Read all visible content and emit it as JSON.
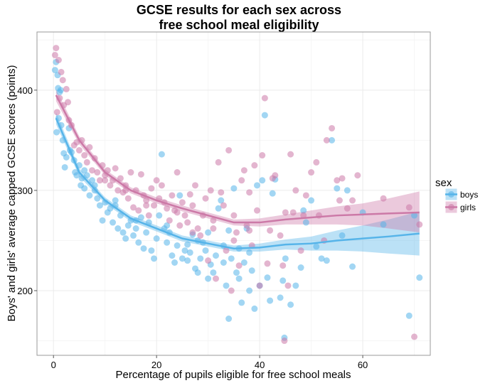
{
  "chart_data": {
    "type": "scatter",
    "title": "GCSE results for each sex across\nfree school meal eligibility",
    "xlabel": "Percentage of pupils eligible for free school meals",
    "ylabel": "Boys' and girls' average capped GCSE scores (points)",
    "xlim": [
      -3.2,
      73.1
    ],
    "ylim": [
      135.5,
      458
    ],
    "xticks": [
      0,
      20,
      40,
      60
    ],
    "yticks": [
      200,
      300,
      400
    ],
    "grid": true,
    "legend": {
      "title": "sex",
      "placement": "right",
      "entries": [
        "boys",
        "girls"
      ]
    },
    "series": [
      {
        "name": "boys",
        "color": "#56B4E9",
        "points": [
          [
            0.3,
            420
          ],
          [
            0.5,
            428
          ],
          [
            0.8,
            415
          ],
          [
            0.9,
            402
          ],
          [
            1.2,
            398
          ],
          [
            1.4,
            400
          ],
          [
            0.6,
            358
          ],
          [
            1,
            372
          ],
          [
            1.5,
            365
          ],
          [
            1.8,
            350
          ],
          [
            2,
            337
          ],
          [
            2.2,
            323
          ],
          [
            2.5,
            333
          ],
          [
            3,
            362
          ],
          [
            3.2,
            340
          ],
          [
            3.5,
            338
          ],
          [
            4,
            330
          ],
          [
            4.2,
            318
          ],
          [
            4.5,
            315
          ],
          [
            5,
            325
          ],
          [
            5.3,
            305
          ],
          [
            5.5,
            312
          ],
          [
            6,
            302
          ],
          [
            6.5,
            315
          ],
          [
            7,
            295
          ],
          [
            7.5,
            310
          ],
          [
            8,
            300
          ],
          [
            8.5,
            292
          ],
          [
            9,
            285
          ],
          [
            9.5,
            270
          ],
          [
            10,
            288
          ],
          [
            10.5,
            278
          ],
          [
            11,
            282
          ],
          [
            11.5,
            268
          ],
          [
            12,
            285
          ],
          [
            12.5,
            262
          ],
          [
            13,
            275
          ],
          [
            13.5,
            258
          ],
          [
            14,
            252
          ],
          [
            14.5,
            265
          ],
          [
            15,
            270
          ],
          [
            15.5,
            255
          ],
          [
            16,
            262
          ],
          [
            16.5,
            248
          ],
          [
            17,
            273
          ],
          [
            17.5,
            242
          ],
          [
            18,
            258
          ],
          [
            18.5,
            268
          ],
          [
            19,
            240
          ],
          [
            19.5,
            232
          ],
          [
            20,
            252
          ],
          [
            20.5,
            275
          ],
          [
            21,
            336
          ],
          [
            21.5,
            262
          ],
          [
            22,
            248
          ],
          [
            22.5,
            258
          ],
          [
            23,
            235
          ],
          [
            23.5,
            228
          ],
          [
            24,
            245
          ],
          [
            24.5,
            295
          ],
          [
            25,
            232
          ],
          [
            25.5,
            240
          ],
          [
            26,
            230
          ],
          [
            26.5,
            238
          ],
          [
            27,
            256
          ],
          [
            27.5,
            222
          ],
          [
            28,
            218
          ],
          [
            28.5,
            232
          ],
          [
            29,
            248
          ],
          [
            29.5,
            240
          ],
          [
            30,
            212
          ],
          [
            30.5,
            226
          ],
          [
            31,
            218
          ],
          [
            31.5,
            235
          ],
          [
            32,
            282
          ],
          [
            32.5,
            290
          ],
          [
            33,
            228
          ],
          [
            33.5,
            205
          ],
          [
            34,
            172
          ],
          [
            34.5,
            232
          ],
          [
            35,
            302
          ],
          [
            35.5,
            218
          ],
          [
            36,
            212
          ],
          [
            36.5,
            188
          ],
          [
            37,
            228
          ],
          [
            37.5,
            262
          ],
          [
            38,
            200
          ],
          [
            38.5,
            220
          ],
          [
            39,
            182
          ],
          [
            39.5,
            305
          ],
          [
            40,
            205
          ],
          [
            40.5,
            310
          ],
          [
            41,
            375
          ],
          [
            41.5,
            213
          ],
          [
            42,
            190
          ],
          [
            42.5,
            297
          ],
          [
            43,
            311
          ],
          [
            44,
            193
          ],
          [
            44.5,
            210
          ],
          [
            44.8,
            153
          ],
          [
            45,
            232
          ],
          [
            46,
            186
          ],
          [
            47,
            205
          ],
          [
            48,
            223
          ],
          [
            48.5,
            280
          ],
          [
            49,
            268
          ],
          [
            50,
            290
          ],
          [
            51,
            244
          ],
          [
            52,
            232
          ],
          [
            53,
            230
          ],
          [
            54,
            350
          ],
          [
            55,
            302
          ],
          [
            56,
            255
          ],
          [
            57,
            300
          ],
          [
            58,
            224
          ],
          [
            60,
            278
          ],
          [
            64,
            266
          ],
          [
            69,
            175
          ],
          [
            70,
            275
          ],
          [
            71,
            213
          ],
          [
            36,
            242
          ],
          [
            38,
            238
          ],
          [
            34,
            260
          ],
          [
            30,
            258
          ],
          [
            26,
            246
          ],
          [
            12,
            290
          ],
          [
            8,
            305
          ],
          [
            6,
            320
          ],
          [
            16,
            270
          ],
          [
            22,
            265
          ],
          [
            28,
            250
          ],
          [
            33,
            245
          ]
        ],
        "smooth": {
          "x": [
            0.5,
            5,
            10,
            15,
            20,
            25,
            30,
            35,
            40,
            45,
            50,
            55,
            60,
            65,
            71
          ],
          "y": [
            372,
            318,
            290,
            272,
            262,
            252,
            247,
            242,
            243,
            246,
            247,
            250,
            252,
            254,
            257
          ],
          "lo": [
            366,
            314,
            287,
            269,
            259,
            249,
            244,
            239,
            239,
            241,
            240,
            240,
            239,
            237,
            235
          ],
          "hi": [
            378,
            322,
            293,
            275,
            265,
            255,
            250,
            245,
            247,
            251,
            254,
            260,
            265,
            271,
            279
          ]
        }
      },
      {
        "name": "girls",
        "color": "#CC79A7",
        "points": [
          [
            0.3,
            435
          ],
          [
            0.5,
            442
          ],
          [
            1,
            430
          ],
          [
            1.5,
            418
          ],
          [
            1.8,
            410
          ],
          [
            2.5,
            401
          ],
          [
            0.7,
            378
          ],
          [
            1.2,
            392
          ],
          [
            2,
            385
          ],
          [
            2.8,
            388
          ],
          [
            3,
            370
          ],
          [
            3.5,
            365
          ],
          [
            4,
            345
          ],
          [
            4.5,
            348
          ],
          [
            5,
            340
          ],
          [
            5.5,
            350
          ],
          [
            6,
            335
          ],
          [
            6.5,
            328
          ],
          [
            7,
            343
          ],
          [
            7.5,
            320
          ],
          [
            8,
            332
          ],
          [
            8.5,
            318
          ],
          [
            9,
            310
          ],
          [
            9.5,
            325
          ],
          [
            10,
            315
          ],
          [
            10.5,
            320
          ],
          [
            11,
            305
          ],
          [
            11.5,
            310
          ],
          [
            12,
            322
          ],
          [
            12.5,
            300
          ],
          [
            13,
            312
          ],
          [
            13.5,
            298
          ],
          [
            14,
            305
          ],
          [
            14.5,
            292
          ],
          [
            15,
            318
          ],
          [
            15.5,
            283
          ],
          [
            16,
            300
          ],
          [
            16.5,
            280
          ],
          [
            17,
            316
          ],
          [
            17.5,
            295
          ],
          [
            18,
            290
          ],
          [
            18.5,
            275
          ],
          [
            19,
            302
          ],
          [
            19.5,
            285
          ],
          [
            20,
            310
          ],
          [
            20.5,
            292
          ],
          [
            21,
            305
          ],
          [
            21.5,
            288
          ],
          [
            22,
            282
          ],
          [
            22.5,
            270
          ],
          [
            23,
            295
          ],
          [
            23.5,
            280
          ],
          [
            24,
            318
          ],
          [
            24.5,
            265
          ],
          [
            25,
            288
          ],
          [
            25.5,
            275
          ],
          [
            26,
            268
          ],
          [
            26.5,
            296
          ],
          [
            27,
            285
          ],
          [
            27.5,
            305
          ],
          [
            28,
            262
          ],
          [
            28.5,
            255
          ],
          [
            29,
            275
          ],
          [
            29.5,
            292
          ],
          [
            30,
            230
          ],
          [
            30.5,
            300
          ],
          [
            31,
            270
          ],
          [
            31.5,
            212
          ],
          [
            32,
            328
          ],
          [
            32.5,
            298
          ],
          [
            33,
            285
          ],
          [
            33.5,
            240
          ],
          [
            34,
            340
          ],
          [
            34.5,
            200
          ],
          [
            35,
            275
          ],
          [
            35.5,
            258
          ],
          [
            36,
            225
          ],
          [
            36.5,
            310
          ],
          [
            37,
            320
          ],
          [
            37.5,
            265
          ],
          [
            38,
            298
          ],
          [
            38.5,
            245
          ],
          [
            39,
            325
          ],
          [
            39.5,
            280
          ],
          [
            40,
            205
          ],
          [
            40.5,
            335
          ],
          [
            41,
            392
          ],
          [
            41.5,
            227
          ],
          [
            42,
            260
          ],
          [
            42.5,
            312
          ],
          [
            43,
            315
          ],
          [
            44,
            255
          ],
          [
            44.5,
            225
          ],
          [
            44.8,
            150
          ],
          [
            45,
            278
          ],
          [
            45.5,
            205
          ],
          [
            46,
            336
          ],
          [
            46.5,
            278
          ],
          [
            47,
            300
          ],
          [
            48,
            240
          ],
          [
            48.5,
            275
          ],
          [
            49,
            295
          ],
          [
            50,
            318
          ],
          [
            51,
            328
          ],
          [
            51.5,
            275
          ],
          [
            52.5,
            250
          ],
          [
            53,
            350
          ],
          [
            54,
            362
          ],
          [
            55,
            310
          ],
          [
            55.5,
            290
          ],
          [
            56,
            312
          ],
          [
            57,
            282
          ],
          [
            58,
            290
          ],
          [
            59,
            315
          ],
          [
            64,
            292
          ],
          [
            69,
            283
          ],
          [
            70,
            154
          ],
          [
            71,
            266
          ],
          [
            35,
            250
          ],
          [
            38,
            260
          ],
          [
            31,
            262
          ],
          [
            27,
            258
          ],
          [
            10,
            310
          ],
          [
            14,
            300
          ],
          [
            18,
            285
          ],
          [
            24,
            278
          ]
        ],
        "smooth": {
          "x": [
            0.5,
            5,
            10,
            15,
            20,
            25,
            30,
            35,
            40,
            45,
            50,
            55,
            60,
            65,
            71
          ],
          "y": [
            395,
            350,
            318,
            300,
            290,
            282,
            275,
            268,
            268,
            271,
            273,
            275,
            276,
            277,
            278
          ],
          "lo": [
            389,
            346,
            315,
            297,
            287,
            279,
            272,
            265,
            264,
            266,
            266,
            266,
            265,
            262,
            258
          ],
          "hi": [
            401,
            354,
            321,
            303,
            293,
            285,
            278,
            271,
            272,
            276,
            280,
            284,
            287,
            292,
            299
          ]
        }
      }
    ]
  }
}
